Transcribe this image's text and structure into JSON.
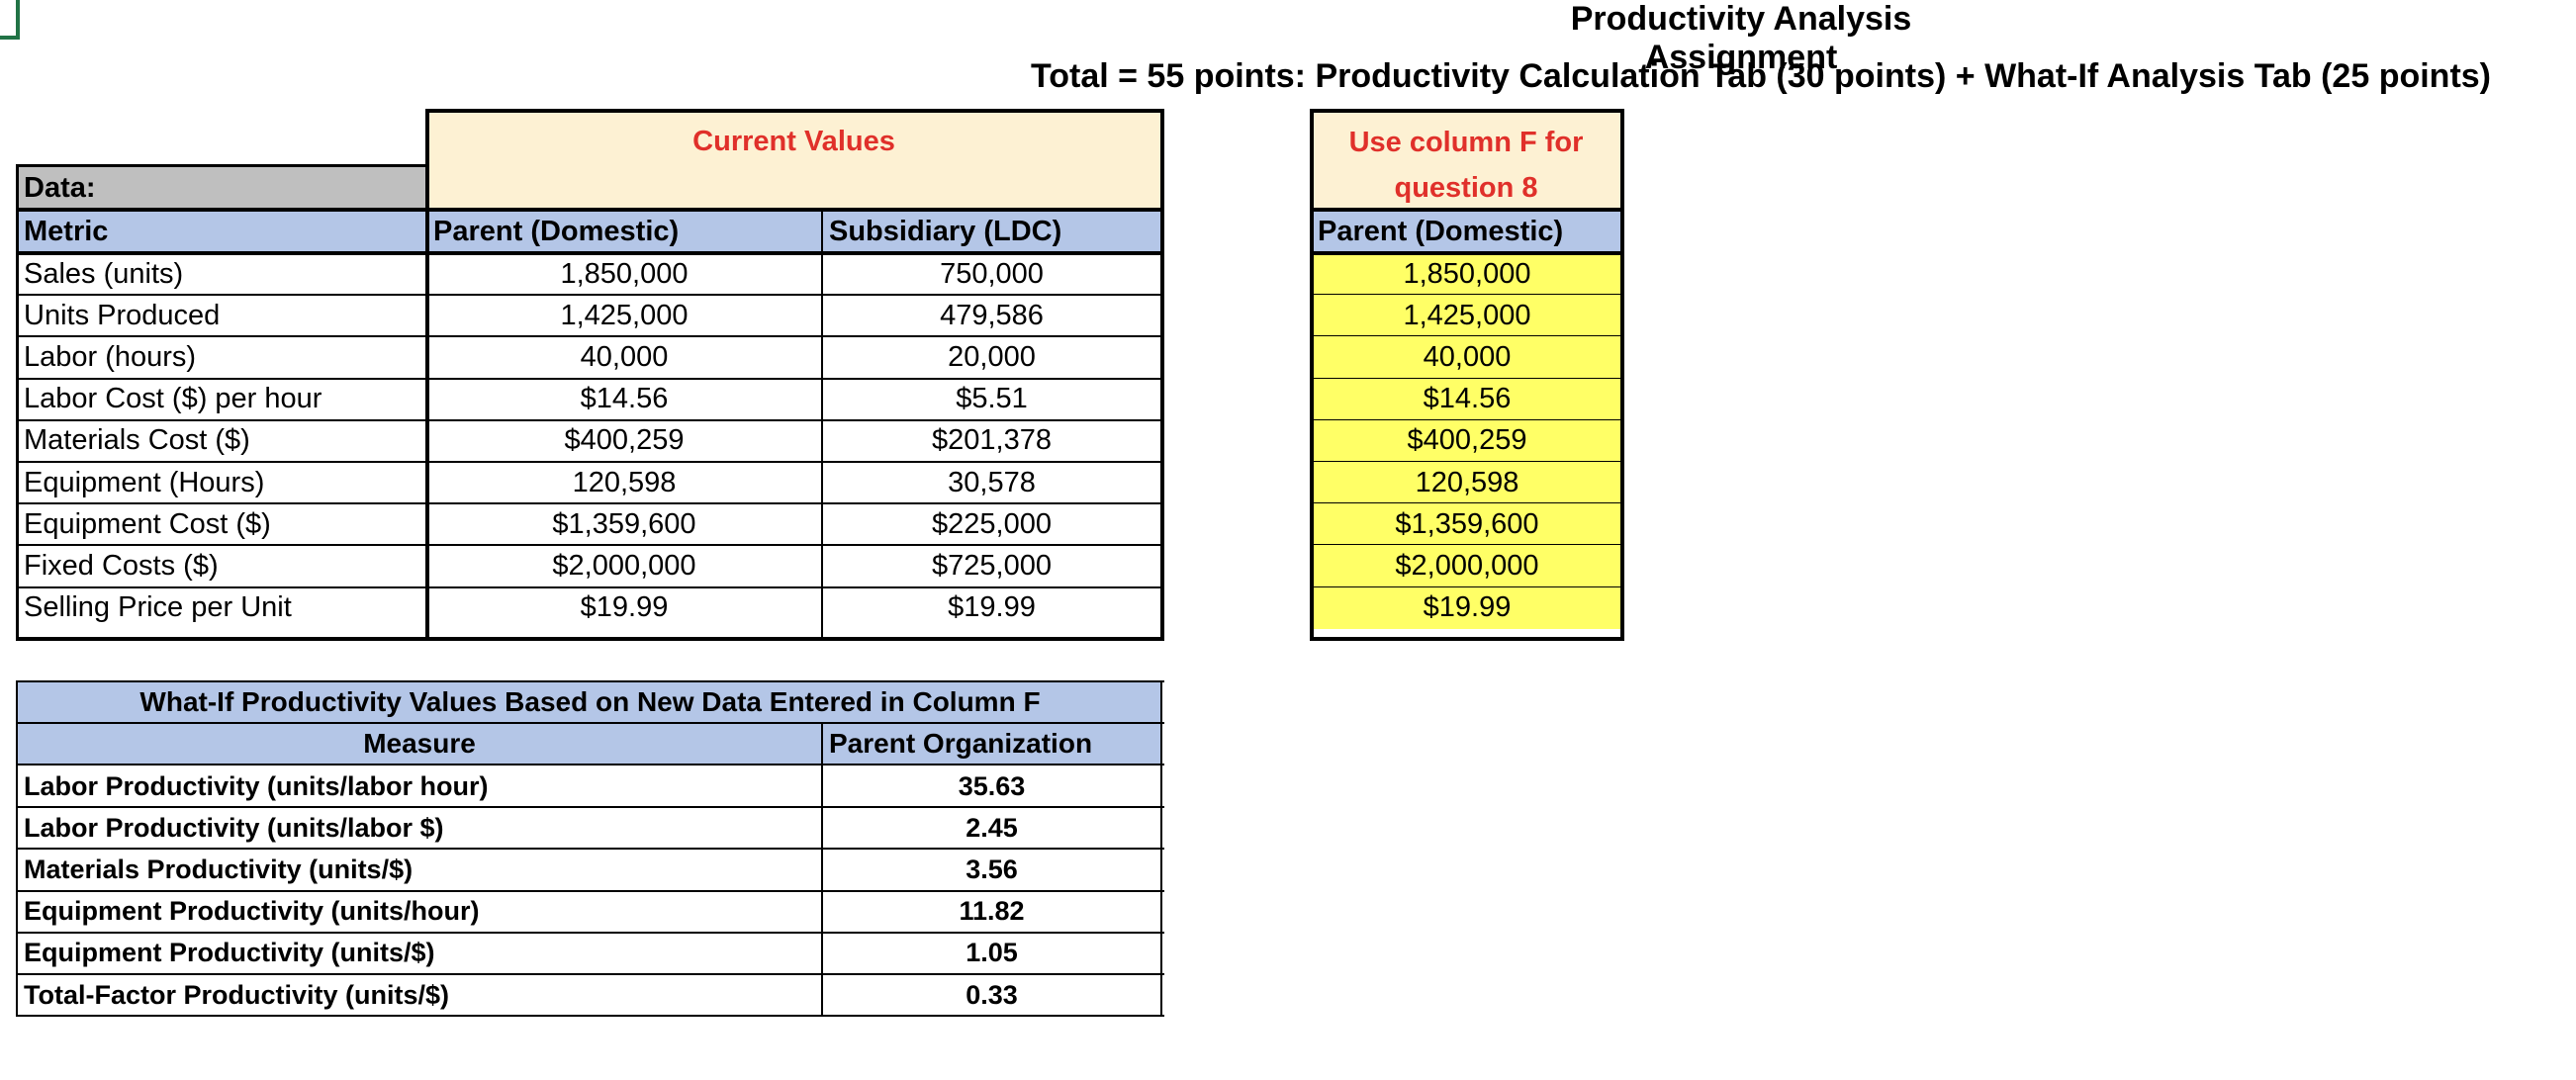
{
  "header": {
    "title": "Productivity Analysis Assignment",
    "subtitle": "Total = 55 points:  Productivity Calculation Tab (30 points) + What-If Analysis Tab (25 points)"
  },
  "current_values_label": "Current Values",
  "what_if_column_note_line1": "Use column F for",
  "what_if_column_note_line2": "question 8",
  "data_table": {
    "section_label": "Data:",
    "headers": [
      "Metric",
      "Parent (Domestic)",
      "Subsidiary (LDC)",
      "Parent (Domestic)"
    ],
    "rows": [
      {
        "metric": "Sales (units)",
        "parent": "1,850,000",
        "subsidiary": "750,000",
        "whatif": "1,850,000"
      },
      {
        "metric": "Units Produced",
        "parent": "1,425,000",
        "subsidiary": "479,586",
        "whatif": "1,425,000"
      },
      {
        "metric": "Labor (hours)",
        "parent": "40,000",
        "subsidiary": "20,000",
        "whatif": "40,000"
      },
      {
        "metric": "Labor Cost ($) per hour",
        "parent": "$14.56",
        "subsidiary": "$5.51",
        "whatif": "$14.56"
      },
      {
        "metric": "Materials Cost ($)",
        "parent": "$400,259",
        "subsidiary": "$201,378",
        "whatif": "$400,259"
      },
      {
        "metric": "Equipment (Hours)",
        "parent": "120,598",
        "subsidiary": "30,578",
        "whatif": "120,598"
      },
      {
        "metric": "Equipment Cost ($)",
        "parent": "$1,359,600",
        "subsidiary": "$225,000",
        "whatif": "$1,359,600"
      },
      {
        "metric": "Fixed Costs ($)",
        "parent": "$2,000,000",
        "subsidiary": "$725,000",
        "whatif": "$2,000,000"
      },
      {
        "metric": "Selling Price per Unit",
        "parent": "$19.99",
        "subsidiary": "$19.99",
        "whatif": "$19.99"
      }
    ]
  },
  "whatif_table": {
    "title": "What-If Productivity Values Based on New Data Entered in Column F",
    "headers": [
      "Measure",
      "Parent Organization"
    ],
    "rows": [
      {
        "measure": "Labor Productivity (units/labor hour)",
        "value": "35.63"
      },
      {
        "measure": "Labor Productivity (units/labor $)",
        "value": "2.45"
      },
      {
        "measure": "Materials Productivity (units/$)",
        "value": "3.56"
      },
      {
        "measure": "Equipment Productivity (units/hour)",
        "value": "11.82"
      },
      {
        "measure": "Equipment Productivity (units/$)",
        "value": "1.05"
      },
      {
        "measure": "Total-Factor Productivity (units/$)",
        "value": "0.33"
      }
    ]
  },
  "colors": {
    "header_blue": "#b4c6e7",
    "label_gray": "#bfbfbf",
    "cream": "#fdf1d3",
    "yellow": "#ffff66",
    "red_text": "#e0302a",
    "selection_green": "#217346"
  }
}
